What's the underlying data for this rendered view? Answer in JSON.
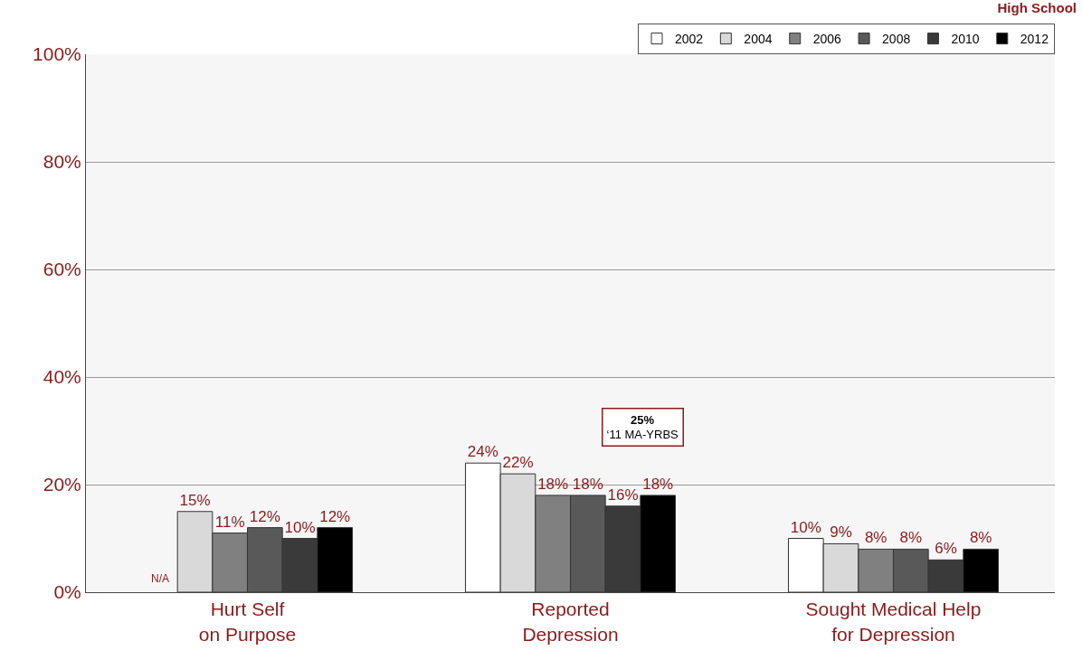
{
  "chart_data": {
    "type": "bar",
    "title": "High School",
    "categories": [
      "Hurt Self\non Purpose",
      "Reported\nDepression",
      "Sought Medical Help\nfor Depression"
    ],
    "series": [
      {
        "name": "2002",
        "color": "#ffffff",
        "values": [
          null,
          24,
          10
        ],
        "value_labels": [
          "N/A",
          "24%",
          "10%"
        ]
      },
      {
        "name": "2004",
        "color": "#d9d9d9",
        "values": [
          15,
          22,
          9
        ],
        "value_labels": [
          "15%",
          "22%",
          "9%"
        ]
      },
      {
        "name": "2006",
        "color": "#808080",
        "values": [
          11,
          18,
          8
        ],
        "value_labels": [
          "11%",
          "18%",
          "8%"
        ]
      },
      {
        "name": "2008",
        "color": "#595959",
        "values": [
          12,
          18,
          8
        ],
        "value_labels": [
          "12%",
          "18%",
          "8%"
        ]
      },
      {
        "name": "2010",
        "color": "#3a3a3a",
        "values": [
          10,
          16,
          6
        ],
        "value_labels": [
          "10%",
          "16%",
          "6%"
        ]
      },
      {
        "name": "2012",
        "color": "#000000",
        "values": [
          12,
          18,
          8
        ],
        "value_labels": [
          "12%",
          "18%",
          "8%"
        ]
      }
    ],
    "annotations": [
      "25%\n‘11 MA-YRBS"
    ],
    "ylim": [
      0,
      100
    ],
    "yticks": [
      {
        "value": 0,
        "label": "0%"
      },
      {
        "value": 20,
        "label": "20%"
      },
      {
        "value": 40,
        "label": "40%"
      },
      {
        "value": 60,
        "label": "60%"
      },
      {
        "value": 80,
        "label": "80%"
      },
      {
        "value": 100,
        "label": "100%"
      }
    ],
    "grid": "y",
    "legend": "top right"
  }
}
